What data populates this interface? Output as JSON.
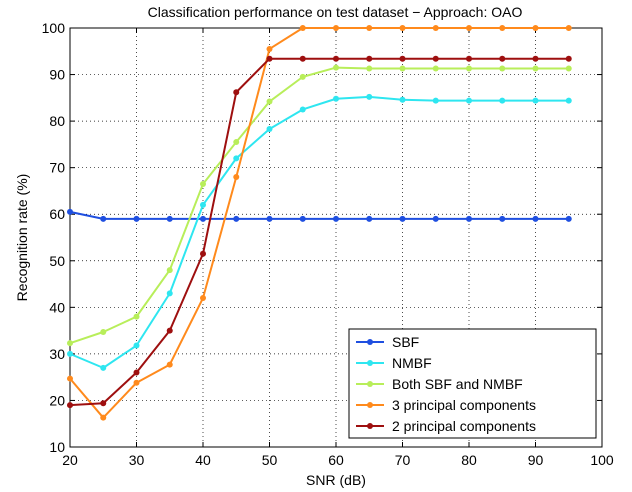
{
  "chart_data": {
    "type": "line",
    "title": "Classification performance on test dataset − Approach: OAO",
    "xlabel": "SNR (dB)",
    "ylabel": "Recognition rate (%)",
    "xlim": [
      20,
      100
    ],
    "ylim": [
      10,
      100
    ],
    "xticks": [
      "20",
      "30",
      "40",
      "50",
      "60",
      "70",
      "80",
      "90",
      "100"
    ],
    "yticks": [
      "10",
      "20",
      "30",
      "40",
      "50",
      "60",
      "70",
      "80",
      "90",
      "100"
    ],
    "grid": true,
    "grid_style": "dotted",
    "legend_position": "bottom-right",
    "x": [
      20,
      25,
      30,
      35,
      40,
      45,
      50,
      55,
      60,
      65,
      70,
      75,
      80,
      85,
      90,
      95
    ],
    "series": [
      {
        "name": "SBF",
        "color": "#1f4fe0",
        "values": [
          60.5,
          59,
          59,
          59,
          59,
          59,
          59,
          59,
          59,
          59,
          59,
          59,
          59,
          59,
          59,
          59
        ]
      },
      {
        "name": "NMBF",
        "color": "#2ee6f0",
        "values": [
          30,
          27,
          31.8,
          43,
          62,
          72,
          78.3,
          82.5,
          84.8,
          85.2,
          84.6,
          84.4,
          84.4,
          84.4,
          84.4,
          84.4
        ]
      },
      {
        "name": "Both SBF and NMBF",
        "color": "#b8ee5a",
        "values": [
          32.3,
          34.7,
          38,
          48,
          66.5,
          75.5,
          84.2,
          89.5,
          91.5,
          91.3,
          91.3,
          91.3,
          91.3,
          91.3,
          91.3,
          91.3
        ]
      },
      {
        "name": "3 principal components",
        "color": "#ff8a1c",
        "values": [
          24.7,
          16.3,
          23.8,
          27.7,
          42,
          68,
          95.5,
          100,
          100,
          100,
          100,
          100,
          100,
          100,
          100,
          100
        ]
      },
      {
        "name": "2 principal components",
        "color": "#9e0f0f",
        "values": [
          19,
          19.4,
          26,
          35,
          51.5,
          86.2,
          93.4,
          93.4,
          93.4,
          93.4,
          93.4,
          93.4,
          93.4,
          93.4,
          93.4,
          93.4
        ]
      }
    ]
  }
}
